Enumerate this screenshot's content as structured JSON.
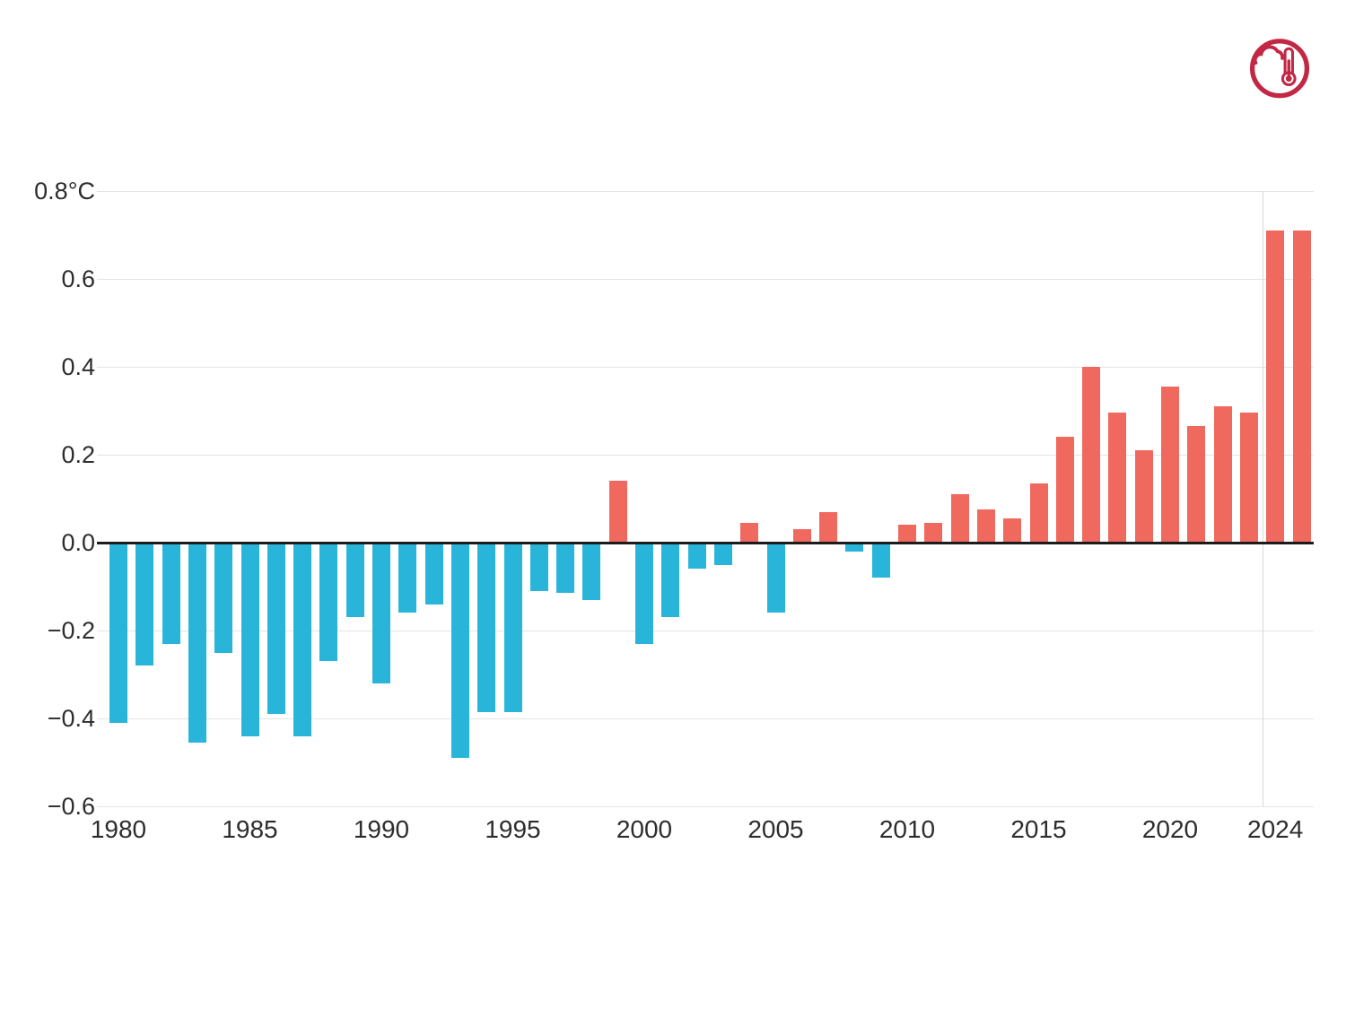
{
  "chart_data": {
    "type": "bar",
    "series_name": "annual-temperature-anomaly",
    "x": [
      1980,
      1981,
      1982,
      1983,
      1984,
      1985,
      1986,
      1987,
      1988,
      1989,
      1990,
      1991,
      1992,
      1993,
      1994,
      1995,
      1996,
      1997,
      1998,
      1999,
      2000,
      2001,
      2002,
      2003,
      2004,
      2005,
      2006,
      2007,
      2008,
      2009,
      2010,
      2011,
      2012,
      2013,
      2014,
      2015,
      2016,
      2017,
      2018,
      2019,
      2020,
      2021,
      2022,
      2023,
      2024,
      2025
    ],
    "values": [
      -0.41,
      -0.28,
      -0.23,
      -0.455,
      -0.25,
      -0.44,
      -0.39,
      -0.44,
      -0.27,
      -0.17,
      -0.32,
      -0.16,
      -0.14,
      -0.49,
      -0.385,
      -0.385,
      -0.11,
      -0.115,
      -0.13,
      0.14,
      -0.23,
      -0.17,
      -0.06,
      -0.05,
      0.045,
      -0.16,
      0.03,
      0.07,
      -0.02,
      -0.08,
      0.04,
      0.045,
      0.11,
      0.075,
      0.055,
      0.135,
      0.24,
      0.4,
      0.295,
      0.21,
      0.355,
      0.265,
      0.31,
      0.295,
      0.71,
      0.71
    ],
    "title": "",
    "xlabel": "",
    "ylabel": "°C",
    "ylim": [
      -0.6,
      0.8
    ],
    "xlim": [
      1979,
      2026
    ],
    "grid": true,
    "legend": "none",
    "y_ticks": [
      0.8,
      0.6,
      0.4,
      0.2,
      0,
      -0.2,
      -0.4,
      -0.6
    ],
    "y_tick_labels": [
      "0.8°C",
      "0.6",
      "0.4",
      "0.2",
      "0.0",
      "−0.2",
      "−0.4",
      "−0.6"
    ],
    "x_ticks": [
      {
        "year": 1980,
        "label": "1980"
      },
      {
        "year": 1985,
        "label": "1985"
      },
      {
        "year": 1990,
        "label": "1990"
      },
      {
        "year": 1995,
        "label": "1995"
      },
      {
        "year": 2000,
        "label": "2000"
      },
      {
        "year": 2005,
        "label": "2005"
      },
      {
        "year": 2010,
        "label": "2010"
      },
      {
        "year": 2015,
        "label": "2015"
      },
      {
        "year": 2020,
        "label": "2020"
      },
      {
        "year": 2024,
        "label": "2024"
      }
    ],
    "colors": {
      "positive": "#f0695e",
      "negative": "#29b5d9",
      "zero_line": "#1c1c1c",
      "gridline": "#e4e4e4",
      "separator": "#d8d8d8",
      "tick_label": "#2d2d2d"
    }
  },
  "logo": {
    "icon": "cloud-thermometer-icon",
    "color": "#c22744"
  }
}
